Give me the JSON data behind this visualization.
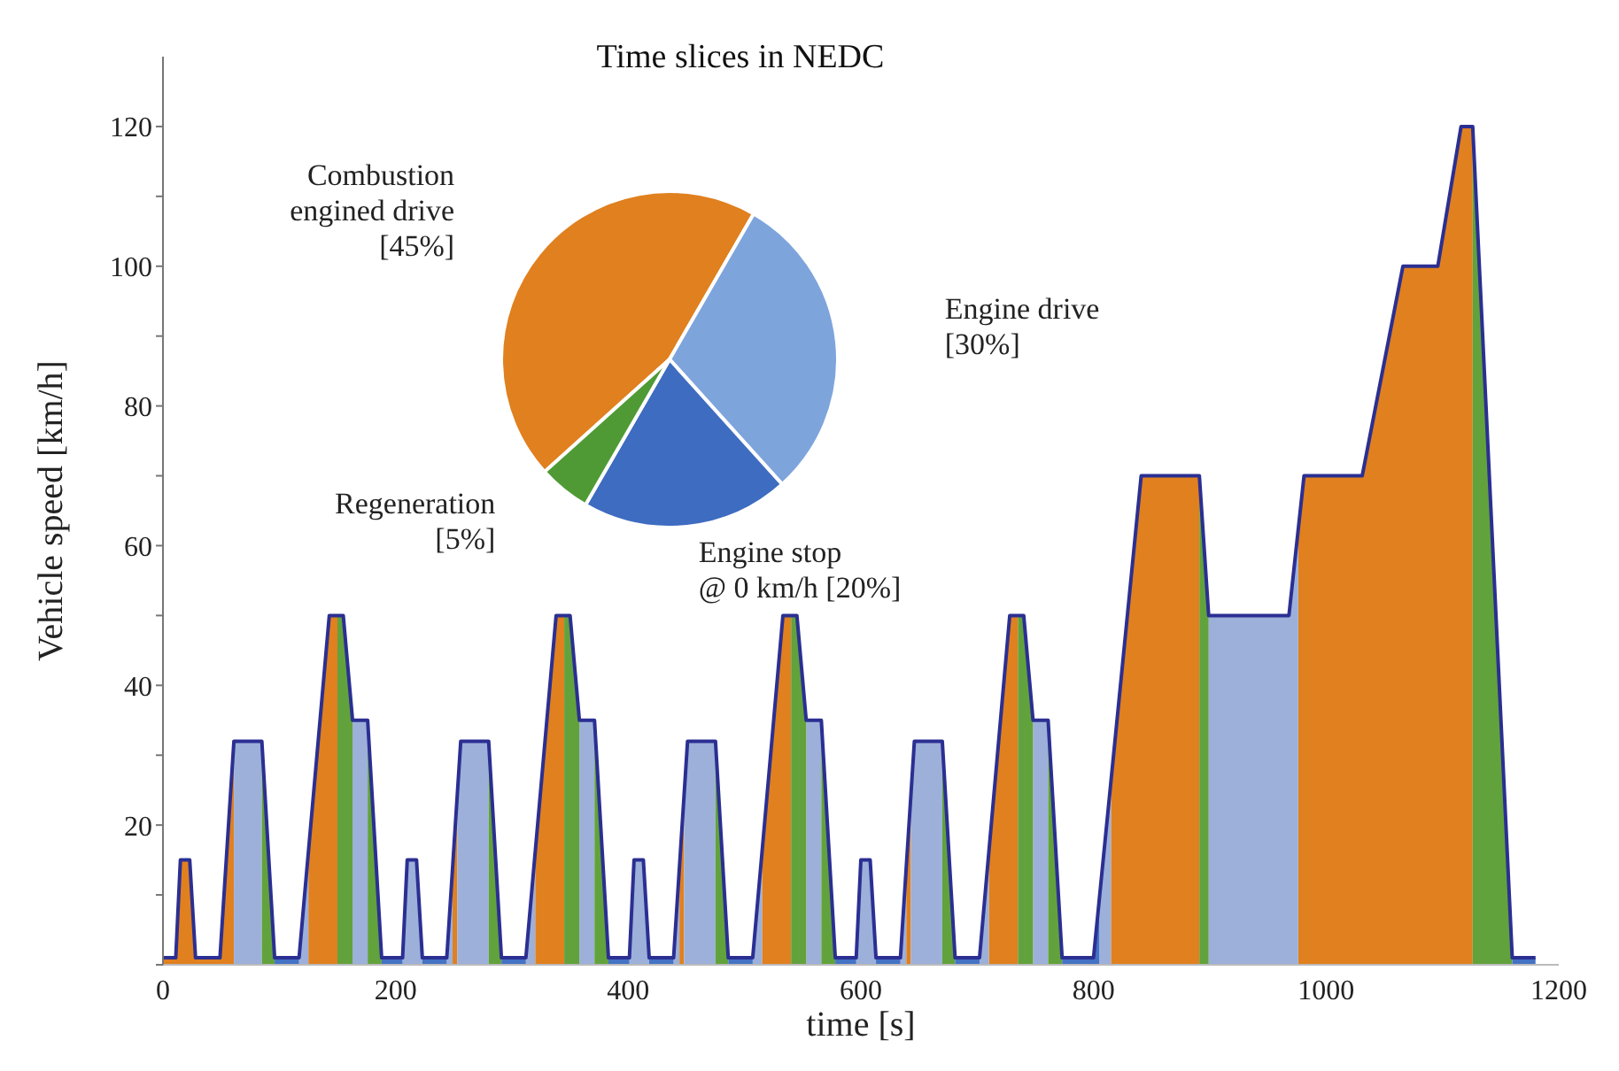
{
  "chart_data": [
    {
      "type": "area",
      "xlabel": "time [s]",
      "ylabel": "Vehicle speed [km/h]",
      "xlim": [
        0,
        1200
      ],
      "xticks": [
        0,
        200,
        400,
        600,
        800,
        1000,
        1200
      ],
      "ylim": [
        0,
        130
      ],
      "yticks": [
        {
          "value": 0,
          "label": null
        },
        {
          "value": 10,
          "label": null
        },
        20,
        {
          "value": 30,
          "label": null
        },
        40,
        {
          "value": 50,
          "label": null
        },
        60,
        {
          "value": 70,
          "label": null
        },
        80,
        {
          "value": 90,
          "label": null
        },
        100,
        {
          "value": 110,
          "label": null
        },
        120
      ],
      "grid": false,
      "legend": false,
      "series": [
        {
          "type": "area",
          "color": "#e0801f",
          "x": [
            0,
            11,
            15,
            23,
            28,
            49,
            61,
            90,
            125,
            143,
            150,
            200,
            249,
            253,
            290,
            320,
            338,
            345,
            400,
            444,
            448,
            480,
            515,
            533,
            540,
            600,
            639,
            643,
            680,
            710,
            728,
            735,
            780,
            815,
            841,
            891,
            930,
            976,
            981,
            1031,
            1066,
            1096,
            1116,
            1126
          ],
          "values": [
            1,
            1,
            15,
            15,
            1,
            1,
            32,
            null,
            16,
            50,
            50,
            null,
            14,
            24,
            null,
            16,
            50,
            50,
            null,
            14,
            24,
            null,
            16,
            50,
            50,
            null,
            14,
            24,
            null,
            16,
            50,
            50,
            null,
            26,
            70,
            70,
            null,
            62,
            70,
            70,
            100,
            100,
            120,
            120
          ]
        },
        {
          "type": "area",
          "color": "#9cb0da",
          "x": [
            61,
            85,
            100,
            117,
            125,
            140,
            163,
            176,
            190,
            206,
            210,
            218,
            223,
            230,
            244,
            249,
            251,
            253,
            256,
            280,
            300,
            312,
            320,
            340,
            358,
            371,
            390,
            401,
            405,
            413,
            418,
            425,
            439,
            444,
            446,
            448,
            451,
            475,
            495,
            507,
            515,
            530,
            553,
            566,
            585,
            596,
            600,
            608,
            613,
            620,
            634,
            639,
            641,
            643,
            646,
            670,
            690,
            702,
            710,
            720,
            748,
            761,
            780,
            805,
            815,
            850,
            899,
            968,
            976
          ],
          "values": [
            32,
            32,
            null,
            1,
            16,
            null,
            35,
            35,
            null,
            1,
            15,
            15,
            1,
            null,
            1,
            14,
            null,
            24,
            32,
            32,
            null,
            1,
            16,
            null,
            35,
            35,
            null,
            1,
            15,
            15,
            1,
            null,
            1,
            14,
            null,
            24,
            32,
            32,
            null,
            1,
            16,
            null,
            35,
            35,
            null,
            1,
            15,
            15,
            1,
            null,
            1,
            14,
            null,
            24,
            32,
            32,
            null,
            1,
            16,
            null,
            35,
            35,
            null,
            9,
            26,
            null,
            50,
            50,
            62
          ]
        },
        {
          "type": "area",
          "color": "#62a23c",
          "x": [
            85,
            96,
            120,
            150,
            155,
            163,
            170,
            176,
            188,
            230,
            280,
            291,
            320,
            345,
            350,
            358,
            365,
            371,
            383,
            430,
            475,
            486,
            510,
            540,
            545,
            553,
            560,
            566,
            578,
            620,
            670,
            681,
            700,
            735,
            740,
            748,
            755,
            761,
            773,
            850,
            891,
            899,
            1000,
            1126,
            1160
          ],
          "values": [
            32,
            1,
            null,
            50,
            50,
            35,
            null,
            35,
            1,
            null,
            32,
            1,
            null,
            50,
            50,
            35,
            null,
            35,
            1,
            null,
            32,
            1,
            null,
            50,
            50,
            35,
            null,
            35,
            1,
            null,
            32,
            1,
            null,
            50,
            50,
            35,
            null,
            35,
            1,
            null,
            70,
            50,
            null,
            120,
            1
          ]
        },
        {
          "type": "area",
          "color": "#4472c4",
          "x": [
            96,
            117,
            150,
            188,
            206,
            215,
            223,
            244,
            270,
            291,
            312,
            350,
            383,
            401,
            410,
            418,
            439,
            470,
            486,
            507,
            550,
            578,
            596,
            605,
            613,
            634,
            660,
            681,
            702,
            740,
            773,
            800,
            805,
            1000,
            1160,
            1180
          ],
          "values": [
            1,
            1,
            null,
            1,
            1,
            null,
            1,
            1,
            null,
            1,
            1,
            null,
            1,
            1,
            null,
            1,
            1,
            null,
            1,
            1,
            null,
            1,
            1,
            null,
            1,
            1,
            null,
            1,
            1,
            null,
            1,
            1,
            9,
            null,
            1,
            1
          ]
        },
        {
          "type": "line",
          "color": "#2b2f92",
          "x": [
            0,
            11,
            15,
            23,
            28,
            49,
            61,
            85,
            96,
            117,
            143,
            155,
            163,
            176,
            188,
            206,
            210,
            218,
            223,
            244,
            256,
            280,
            291,
            312,
            338,
            350,
            358,
            371,
            383,
            401,
            405,
            413,
            418,
            439,
            451,
            475,
            486,
            507,
            533,
            545,
            553,
            566,
            578,
            596,
            600,
            608,
            613,
            634,
            646,
            670,
            681,
            702,
            728,
            740,
            748,
            761,
            773,
            800,
            841,
            891,
            899,
            968,
            981,
            1031,
            1066,
            1096,
            1116,
            1126,
            1160,
            1180
          ],
          "values": [
            1,
            1,
            15,
            15,
            1,
            1,
            32,
            32,
            1,
            1,
            50,
            50,
            35,
            35,
            1,
            1,
            15,
            15,
            1,
            1,
            32,
            32,
            1,
            1,
            50,
            50,
            35,
            35,
            1,
            1,
            15,
            15,
            1,
            1,
            32,
            32,
            1,
            1,
            50,
            50,
            35,
            35,
            1,
            1,
            15,
            15,
            1,
            1,
            32,
            32,
            1,
            1,
            50,
            50,
            35,
            35,
            1,
            1,
            70,
            70,
            50,
            50,
            70,
            70,
            100,
            100,
            120,
            120,
            1,
            1
          ]
        }
      ]
    },
    {
      "type": "pie",
      "title": "Time slices in NEDC",
      "categories": [
        "Combustion\nengined drive",
        "Engine drive",
        "Engine stop\n@ 0 km/h",
        "Regeneration"
      ],
      "values": [
        45,
        30,
        20,
        5
      ],
      "colors": [
        "#e0801f",
        "#7ea4dc",
        "#3e6cc0",
        "#4f9a35"
      ],
      "value_labels": [
        "[45%]",
        "[30%]",
        "[20%]",
        "[5%]"
      ]
    }
  ]
}
